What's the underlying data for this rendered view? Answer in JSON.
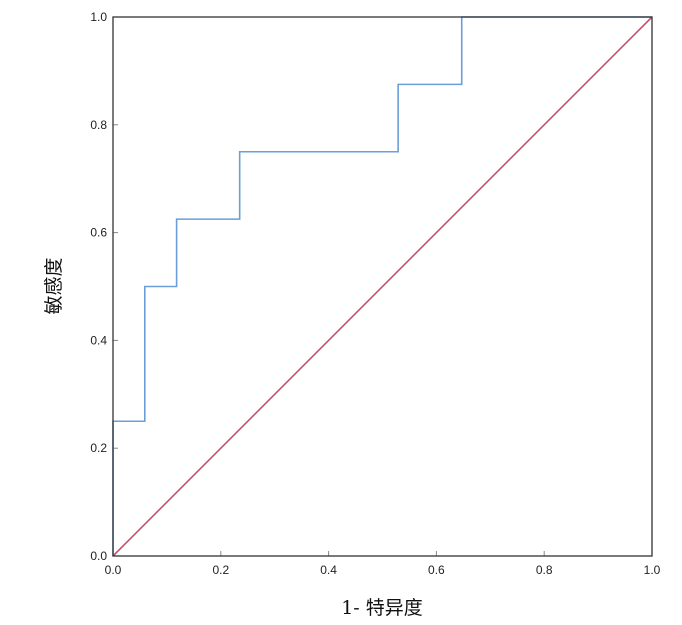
{
  "chart_data": {
    "type": "line",
    "title": "",
    "xlabel": "1- 特异度",
    "ylabel": "敏感度",
    "xlim": [
      0,
      1
    ],
    "ylim": [
      0,
      1
    ],
    "xticks": [
      "0.0",
      "0.2",
      "0.4",
      "0.6",
      "0.8",
      "1.0"
    ],
    "yticks": [
      "0.0",
      "0.2",
      "0.4",
      "0.6",
      "0.8",
      "1.0"
    ],
    "grid": false,
    "series": [
      {
        "style": "step",
        "color": "#6a9fd8",
        "x": [
          0,
          0,
          0.059,
          0.059,
          0.118,
          0.118,
          0.235,
          0.235,
          0.529,
          0.529,
          0.647,
          0.647,
          1.0
        ],
        "y": [
          0,
          0.25,
          0.25,
          0.5,
          0.5,
          0.625,
          0.625,
          0.75,
          0.75,
          0.875,
          0.875,
          1.0,
          1.0
        ]
      },
      {
        "style": "line",
        "color": "#c8506e",
        "x": [
          0,
          1
        ],
        "y": [
          0,
          1
        ]
      }
    ]
  }
}
